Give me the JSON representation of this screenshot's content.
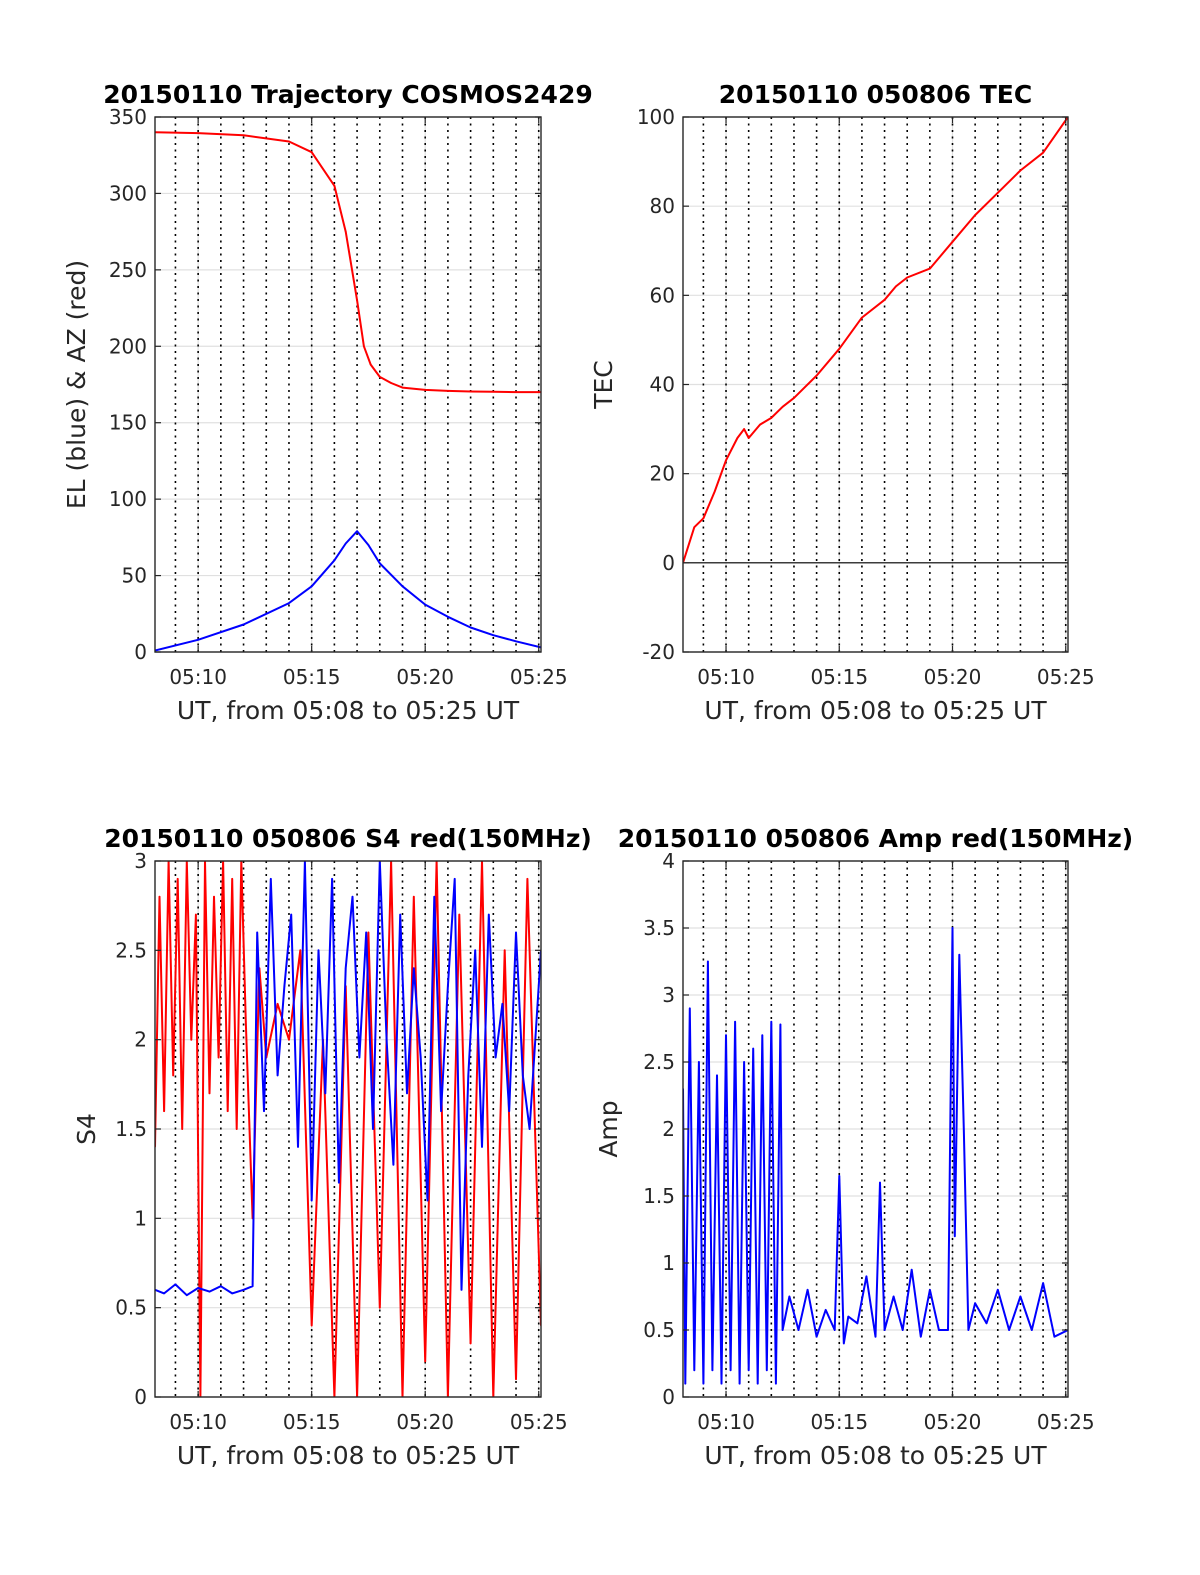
{
  "chart_data": [
    {
      "id": "trajectory",
      "type": "line",
      "title": "20150110 Trajectory COSMOS2429",
      "xlabel": "UT, from 05:08 to 05:25 UT",
      "ylabel": "EL (blue) & AZ (red)",
      "x_unit": "minutes after 05:00 UT",
      "xlim": [
        8.1,
        25.1
      ],
      "ylim": [
        0,
        350
      ],
      "xticks": [
        10,
        15,
        20,
        25
      ],
      "xtick_labels": [
        "05:10",
        "05:15",
        "05:20",
        "05:25"
      ],
      "yticks": [
        0,
        50,
        100,
        150,
        200,
        250,
        300,
        350
      ],
      "ytick_labels": [
        "0",
        "50",
        "100",
        "150",
        "200",
        "250",
        "300",
        "350"
      ],
      "grid": true,
      "series": [
        {
          "color": "#ff0000",
          "x": [
            8.1,
            10,
            12,
            14,
            15,
            16,
            16.5,
            17,
            17.3,
            17.6,
            18,
            18.5,
            19,
            20,
            21,
            22,
            23,
            24,
            25.1
          ],
          "y": [
            340,
            339.5,
            338,
            334,
            327,
            305,
            275,
            230,
            200,
            188,
            180,
            176,
            173,
            171.5,
            170.8,
            170.4,
            170.2,
            170,
            170
          ]
        },
        {
          "color": "#0000ff",
          "x": [
            8.1,
            10,
            12,
            14,
            15,
            16,
            16.5,
            17,
            17.5,
            18,
            19,
            20,
            21,
            22,
            23,
            24,
            25.1
          ],
          "y": [
            1,
            8,
            18,
            32,
            43,
            60,
            71,
            79,
            70,
            58,
            43,
            31,
            23,
            16,
            11,
            7,
            3
          ]
        }
      ]
    },
    {
      "id": "tec",
      "type": "line",
      "title": "20150110 050806 TEC",
      "xlabel": "UT, from 05:08 to 05:25 UT",
      "ylabel": "TEC",
      "x_unit": "minutes after 05:00 UT",
      "xlim": [
        8.1,
        25.1
      ],
      "ylim": [
        -20,
        100
      ],
      "xticks": [
        10,
        15,
        20,
        25
      ],
      "xtick_labels": [
        "05:10",
        "05:15",
        "05:20",
        "05:25"
      ],
      "yticks": [
        -20,
        0,
        20,
        40,
        60,
        80,
        100
      ],
      "ytick_labels": [
        "-20",
        "0",
        "20",
        "40",
        "60",
        "80",
        "100"
      ],
      "grid": true,
      "series": [
        {
          "color": "#ff0000",
          "x": [
            8.1,
            8.6,
            9.0,
            9.5,
            10.0,
            10.5,
            10.8,
            11.0,
            11.5,
            12.0,
            12.5,
            13.0,
            14.0,
            15.0,
            16.0,
            17.0,
            17.5,
            18.0,
            19.0,
            20.0,
            21.0,
            22.0,
            23.0,
            24.0,
            25.1
          ],
          "y": [
            0,
            8,
            10,
            16,
            23,
            28,
            30,
            28,
            31,
            32.5,
            35,
            37,
            42,
            48,
            55,
            59,
            62,
            64,
            66,
            72,
            78,
            83,
            88,
            92,
            100
          ]
        }
      ]
    },
    {
      "id": "s4",
      "type": "line",
      "title": "20150110 050806 S4 red(150MHz)",
      "xlabel": "UT, from 05:08 to 05:25 UT",
      "ylabel": "S4",
      "x_unit": "minutes after 05:00 UT",
      "xlim": [
        8.1,
        25.1
      ],
      "ylim": [
        0,
        3
      ],
      "xticks": [
        10,
        15,
        20,
        25
      ],
      "xtick_labels": [
        "05:10",
        "05:15",
        "05:20",
        "05:25"
      ],
      "yticks": [
        0,
        0.5,
        1,
        1.5,
        2,
        2.5,
        3
      ],
      "ytick_labels": [
        "0",
        "0.5",
        "1",
        "1.5",
        "2",
        "2.5",
        "3"
      ],
      "grid": true,
      "series": [
        {
          "color": "#ff0000",
          "x": [
            8.1,
            8.3,
            8.5,
            8.7,
            8.9,
            9.1,
            9.3,
            9.5,
            9.7,
            9.9,
            10.1,
            10.3,
            10.5,
            10.7,
            10.9,
            11.1,
            11.3,
            11.5,
            11.7,
            11.9,
            12.1,
            12.4,
            12.7,
            13.0,
            13.5,
            14.0,
            14.5,
            15.0,
            15.5,
            16.0,
            16.5,
            17.0,
            17.5,
            18.0,
            18.5,
            19.0,
            19.5,
            20.0,
            20.5,
            21.0,
            21.5,
            22.0,
            22.5,
            23.0,
            23.5,
            24.0,
            24.5,
            25.1
          ],
          "y": [
            1.4,
            2.8,
            1.6,
            3.0,
            1.8,
            2.9,
            1.5,
            3.0,
            2.0,
            2.7,
            0,
            3.0,
            1.7,
            2.8,
            1.9,
            3.0,
            1.6,
            2.9,
            1.5,
            3.0,
            2.1,
            1.0,
            2.4,
            1.9,
            2.2,
            2.0,
            2.5,
            0.4,
            2.0,
            0,
            2.3,
            0,
            2.6,
            0.5,
            3.0,
            0,
            2.8,
            0.2,
            3.0,
            0,
            2.7,
            0.3,
            3.0,
            0,
            2.5,
            0.1,
            2.9,
            0.4
          ]
        },
        {
          "color": "#0000ff",
          "x": [
            8.1,
            8.5,
            9.0,
            9.5,
            10.0,
            10.5,
            11.0,
            11.5,
            12.0,
            12.4,
            12.6,
            12.9,
            13.2,
            13.5,
            13.8,
            14.1,
            14.4,
            14.7,
            15.0,
            15.3,
            15.6,
            15.9,
            16.2,
            16.5,
            16.8,
            17.1,
            17.4,
            17.7,
            18.0,
            18.3,
            18.6,
            18.9,
            19.2,
            19.5,
            19.8,
            20.1,
            20.4,
            20.7,
            21.0,
            21.3,
            21.6,
            21.9,
            22.2,
            22.5,
            22.8,
            23.1,
            23.4,
            23.7,
            24.0,
            24.3,
            24.6,
            25.1
          ],
          "y": [
            0.6,
            0.58,
            0.63,
            0.57,
            0.61,
            0.59,
            0.62,
            0.58,
            0.6,
            0.62,
            2.6,
            1.6,
            2.9,
            1.8,
            2.3,
            2.7,
            1.4,
            3.0,
            1.1,
            2.5,
            1.7,
            2.9,
            1.2,
            2.4,
            2.8,
            1.9,
            2.6,
            1.5,
            3.0,
            2.0,
            1.3,
            2.7,
            1.7,
            2.4,
            1.9,
            1.1,
            2.8,
            1.6,
            2.3,
            2.9,
            0.6,
            1.8,
            2.5,
            1.4,
            2.7,
            1.9,
            2.2,
            1.6,
            2.6,
            1.8,
            1.5,
            2.5
          ]
        }
      ]
    },
    {
      "id": "amp",
      "type": "line",
      "title": "20150110 050806 Amp red(150MHz)",
      "xlabel": "UT, from 05:08 to 05:25 UT",
      "ylabel": "Amp",
      "x_unit": "minutes after 05:00 UT",
      "xlim": [
        8.1,
        25.1
      ],
      "ylim": [
        0,
        4
      ],
      "xticks": [
        10,
        15,
        20,
        25
      ],
      "xtick_labels": [
        "05:10",
        "05:15",
        "05:20",
        "05:25"
      ],
      "yticks": [
        0,
        0.5,
        1,
        1.5,
        2,
        2.5,
        3,
        3.5,
        4
      ],
      "ytick_labels": [
        "0",
        "0.5",
        "1",
        "1.5",
        "2",
        "2.5",
        "3",
        "3.5",
        "4"
      ],
      "grid": true,
      "series": [
        {
          "color": "#0000ff",
          "x": [
            8.1,
            8.2,
            8.4,
            8.6,
            8.8,
            9.0,
            9.2,
            9.4,
            9.6,
            9.8,
            10.0,
            10.2,
            10.4,
            10.6,
            10.8,
            11.0,
            11.2,
            11.4,
            11.6,
            11.8,
            12.0,
            12.2,
            12.4,
            12.5,
            12.8,
            13.2,
            13.6,
            14.0,
            14.4,
            14.8,
            15.0,
            15.2,
            15.4,
            15.8,
            16.2,
            16.6,
            16.8,
            17.0,
            17.4,
            17.8,
            18.2,
            18.6,
            19.0,
            19.4,
            19.8,
            20.0,
            20.1,
            20.3,
            20.5,
            20.7,
            21.0,
            21.5,
            22.0,
            22.5,
            23.0,
            23.5,
            24.0,
            24.5,
            25.1
          ],
          "y": [
            2.3,
            0.1,
            2.9,
            0.2,
            2.5,
            0.1,
            3.25,
            0.2,
            2.4,
            0.1,
            2.7,
            0.2,
            2.8,
            0.1,
            2.5,
            0.2,
            2.6,
            0.1,
            2.7,
            0.2,
            2.8,
            0.1,
            2.78,
            0.5,
            0.75,
            0.5,
            0.8,
            0.45,
            0.65,
            0.5,
            1.65,
            0.4,
            0.6,
            0.55,
            0.9,
            0.45,
            1.6,
            0.5,
            0.75,
            0.5,
            0.95,
            0.45,
            0.8,
            0.5,
            0.5,
            3.5,
            1.2,
            3.3,
            2.0,
            0.5,
            0.7,
            0.55,
            0.8,
            0.5,
            0.75,
            0.5,
            0.85,
            0.45,
            0.5
          ]
        }
      ]
    }
  ]
}
